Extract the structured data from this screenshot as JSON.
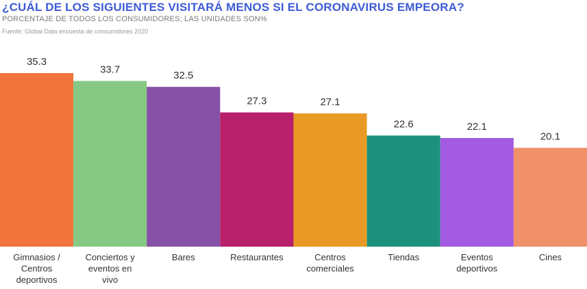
{
  "header": {
    "title": "¿CUÁL DE LOS SIGUIENTES VISITARÁ MENOS SI EL CORONAVIRUS EMPEORA?",
    "subtitle": "PORCENTAJE DE TODOS LOS CONSUMIDORES; LAS UNIDADES SON%",
    "source": "Fuente: Global Data encuesta de consumidores 2020"
  },
  "chart_data": {
    "type": "bar",
    "title": "¿CUÁL DE LOS SIGUIENTES VISITARÁ MENOS SI EL CORONAVIRUS EMPEORA?",
    "subtitle": "PORCENTAJE DE TODOS LOS CONSUMIDORES; LAS UNIDADES SON%",
    "xlabel": "",
    "ylabel": "",
    "ylim": [
      0,
      35.3
    ],
    "grid": false,
    "legend": "none",
    "categories": [
      [
        "Gimnasios /",
        "Centros",
        "deportivos"
      ],
      [
        "Conciertos y",
        "eventos en",
        "vivo"
      ],
      [
        "Bares"
      ],
      [
        "Restaurantes"
      ],
      [
        "Centros",
        "comerciales"
      ],
      [
        "Tiendas"
      ],
      [
        "Eventos",
        "deportivos"
      ],
      [
        "Cines"
      ]
    ],
    "values": [
      35.3,
      33.7,
      32.5,
      27.3,
      27.1,
      22.6,
      22.1,
      20.1
    ],
    "value_labels": [
      "35.3",
      "33.7",
      "32.5",
      "27.3",
      "27.1",
      "22.6",
      "22.1",
      "20.1"
    ],
    "colors": [
      "#f0743c",
      "#85c985",
      "#8651a6",
      "#b8206b",
      "#e99a26",
      "#1d917e",
      "#a35be2",
      "#f0916a"
    ]
  }
}
